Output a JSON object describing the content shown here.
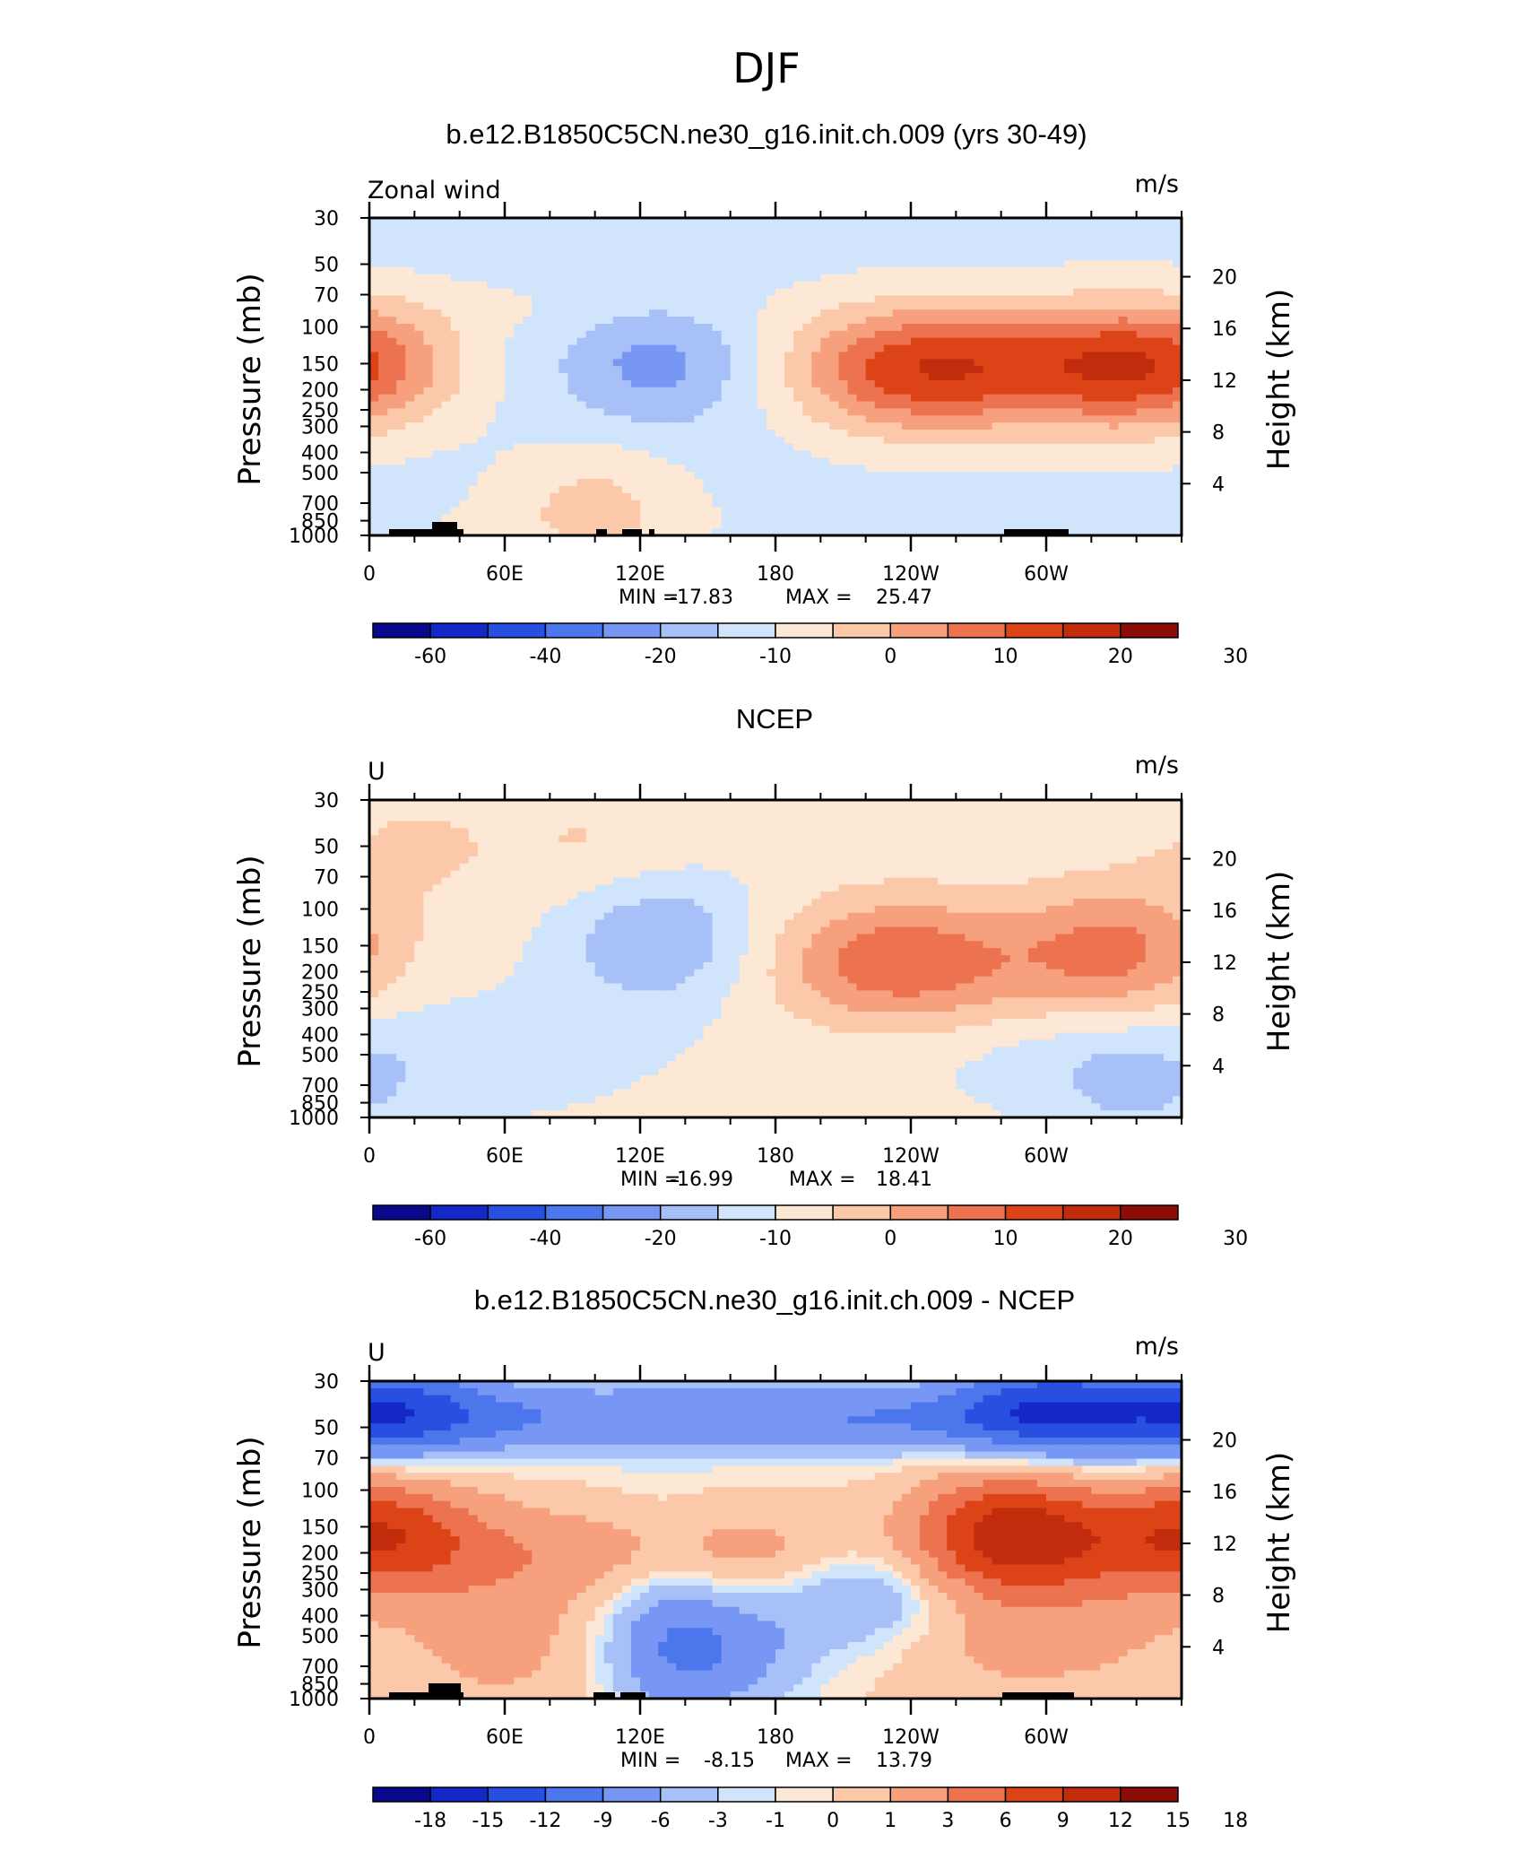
{
  "figure": {
    "title": "DJF",
    "colors": {
      "full_scale": [
        "#08088c",
        "#1428c8",
        "#2850e0",
        "#4c76ec",
        "#7896f4",
        "#a8c0f8",
        "#d0e4fc",
        "#fde8d6",
        "#fbc8aa",
        "#f6a07e",
        "#ec7250",
        "#dc4418",
        "#c02c0c",
        "#8c0c06"
      ],
      "diff_scale": [
        "#08088c",
        "#1428c8",
        "#2850e0",
        "#4c76ec",
        "#7896f4",
        "#a8c0f8",
        "#d0e4fc",
        "#fde8d6",
        "#fbc8aa",
        "#f6a07e",
        "#ec7250",
        "#dc4418",
        "#c02c0c",
        "#8c0c06"
      ],
      "topography": "#000000"
    }
  },
  "chart_data": [
    {
      "type": "heatmap",
      "title": "b.e12.B1850C5CN.ne30_g16.init.ch.009 (yrs 30-49)",
      "left_label": "Zonal wind",
      "units": "m/s",
      "ylabel": "Pressure  (mb)",
      "ylabel_right": "Height  (km)",
      "xticks": [
        "0",
        "60E",
        "120E",
        "180",
        "120W",
        "60W"
      ],
      "yticks": [
        "30",
        "50",
        "70",
        "100",
        "150",
        "200",
        "250",
        "300",
        "400",
        "500",
        "700",
        "850",
        "1000"
      ],
      "yticks_right": [
        "20",
        "16",
        "12",
        "8",
        "4"
      ],
      "stats": {
        "min_label": "MIN =",
        "min": "-17.83",
        "max_label": "MAX =",
        "max": "25.47"
      },
      "colorbar_labels": [
        "-60",
        "-40",
        "-20",
        "-10",
        "0",
        "10",
        "20",
        "30"
      ],
      "features": [
        {
          "lon": 128,
          "p": 150,
          "value": -10
        },
        {
          "lon": 243,
          "p": 160,
          "value": 25
        },
        {
          "lon": 330,
          "p": 155,
          "value": 22
        },
        {
          "lon": 100,
          "p": 700,
          "value": 8
        },
        {
          "lon": 0,
          "p": 150,
          "value": 7
        }
      ]
    },
    {
      "type": "heatmap",
      "title": "NCEP",
      "left_label": "U",
      "units": "m/s",
      "ylabel": "Pressure  (mb)",
      "ylabel_right": "Height  (km)",
      "xticks": [
        "0",
        "60E",
        "120E",
        "180",
        "120W",
        "60W"
      ],
      "yticks": [
        "30",
        "50",
        "70",
        "100",
        "150",
        "200",
        "250",
        "300",
        "400",
        "500",
        "700",
        "850",
        "1000"
      ],
      "yticks_right": [
        "20",
        "16",
        "12",
        "8",
        "4"
      ],
      "stats": {
        "min_label": "MIN =",
        "min": "-16.99",
        "max_label": "MAX =",
        "max": "18.41"
      },
      "colorbar_labels": [
        "-60",
        "-40",
        "-20",
        "-10",
        "0",
        "10",
        "20",
        "30"
      ],
      "features": [
        {
          "lon": 128,
          "p": 140,
          "value": -12
        },
        {
          "lon": 237,
          "p": 180,
          "value": 18
        },
        {
          "lon": 330,
          "p": 160,
          "value": 15
        },
        {
          "lon": 20,
          "p": 50,
          "value": 4
        },
        {
          "lon": 100,
          "p": 50,
          "value": 4
        },
        {
          "lon": 340,
          "p": 700,
          "value": -7
        }
      ]
    },
    {
      "type": "heatmap",
      "title": "b.e12.B1850C5CN.ne30_g16.init.ch.009 - NCEP",
      "left_label": "U",
      "units": "m/s",
      "ylabel": "Pressure  (mb)",
      "ylabel_right": "Height  (km)",
      "xticks": [
        "0",
        "60E",
        "120E",
        "180",
        "120W",
        "60W"
      ],
      "yticks": [
        "30",
        "50",
        "70",
        "100",
        "150",
        "200",
        "250",
        "300",
        "400",
        "500",
        "700",
        "850",
        "1000"
      ],
      "yticks_right": [
        "20",
        "16",
        "12",
        "8",
        "4"
      ],
      "stats": {
        "min_label": "MIN =",
        "min": "-8.15",
        "max_label": "MAX =",
        "max": "13.79"
      },
      "colorbar_labels": [
        "-18",
        "-15",
        "-12",
        "-9",
        "-6",
        "-3",
        "-1",
        "0",
        "1",
        "3",
        "6",
        "9",
        "12",
        "15",
        "18"
      ],
      "features": [
        {
          "lon": 10,
          "p": 40,
          "value": -8
        },
        {
          "lon": 300,
          "p": 40,
          "value": -8
        },
        {
          "lon": 285,
          "p": 150,
          "value": 11
        },
        {
          "lon": 5,
          "p": 150,
          "value": 9
        },
        {
          "lon": 223,
          "p": 280,
          "value": -6
        },
        {
          "lon": 150,
          "p": 600,
          "value": -6
        }
      ]
    }
  ]
}
